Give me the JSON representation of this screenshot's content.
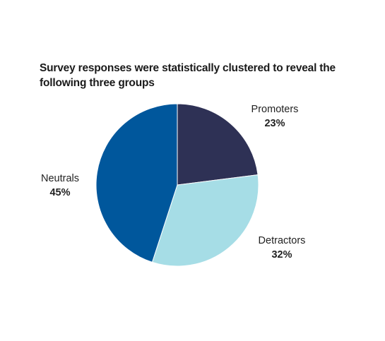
{
  "chart_data": {
    "type": "pie",
    "title": "Survey responses were statistically clustered to reveal the following three groups",
    "slices": [
      {
        "label": "Promoters",
        "value": 23,
        "value_label": "23%",
        "color": "#2e3155"
      },
      {
        "label": "Detractors",
        "value": 32,
        "value_label": "32%",
        "color": "#a6dde6"
      },
      {
        "label": "Neutrals",
        "value": 45,
        "value_label": "45%",
        "color": "#00579c"
      }
    ],
    "start": "12 o'clock",
    "direction": "clockwise",
    "legend": "none"
  }
}
